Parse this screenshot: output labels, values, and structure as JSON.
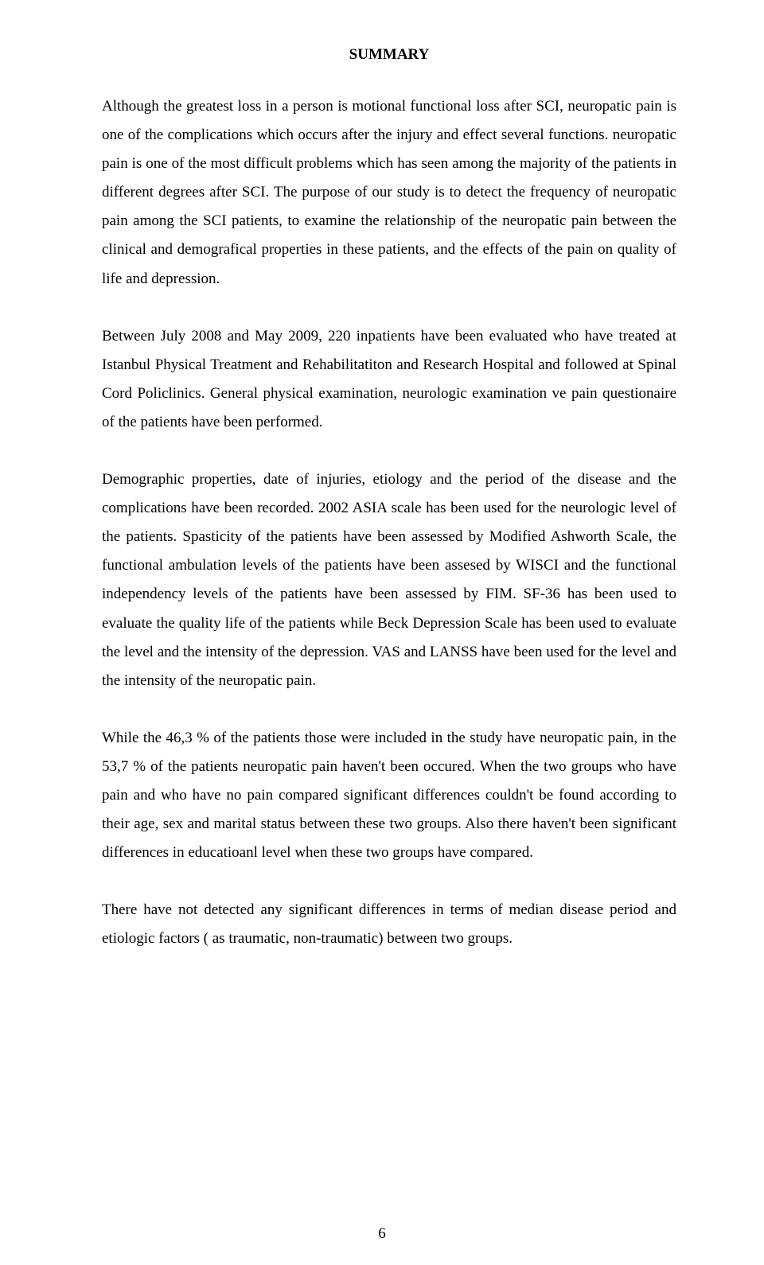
{
  "heading": "SUMMARY",
  "paragraphs": {
    "p1": "Although the greatest loss in a person is motional functional loss after SCI, neuropatic pain is one of the complications which occurs after the injury and effect several functions. neuropatic pain is one of the most difficult problems which has seen among the majority of the patients in different degrees after SCI.  The purpose of our study is to detect the frequency of neuropatic pain among the SCI patients, to examine the relationship of  the neuropatic pain  between   the clinical and demografical properties in these patients,  and the effects of the pain on quality of life and depression.",
    "p2": "Between July 2008 and May 2009, 220 inpatients have been evaluated who have treated  at Istanbul Physical Treatment and Rehabilitatiton and Research Hospital and followed  at Spinal Cord Policlinics. General physical examination, neurologic examination ve pain questionaire of the patients have been performed.",
    "p3": "Demographic properties, date of injuries, etiology and the period of the disease and the complications have been recorded. 2002 ASIA scale has been used for the neurologic level of the patients. Spasticity of the patients have been assessed by Modified Ashworth Scale, the functional ambulation levels of the patients have been assesed by WISCI and the functional independency levels of the patients have been assessed by FIM. SF-36 has been used to evaluate the quality life of the patients while Beck Depression Scale has been used to evaluate the level and the intensity of the depression. VAS and LANSS have been used for the level and the intensity of the neuropatic pain.",
    "p4": "While the 46,3 % of the patients those were included in the study have neuropatic pain, in the 53,7 % of the patients neuropatic pain haven't been occured. When the two groups who have pain and who have no pain compared significant  differences couldn't be found according to their  age, sex and marital status between these two groups. Also there haven't been significant differences in educatioanl level when these two groups have compared.",
    "p5": "There have not detected any significant differences in terms of median disease period and etiologic factors ( as traumatic, non-traumatic)  between two groups."
  },
  "page_number": "6"
}
